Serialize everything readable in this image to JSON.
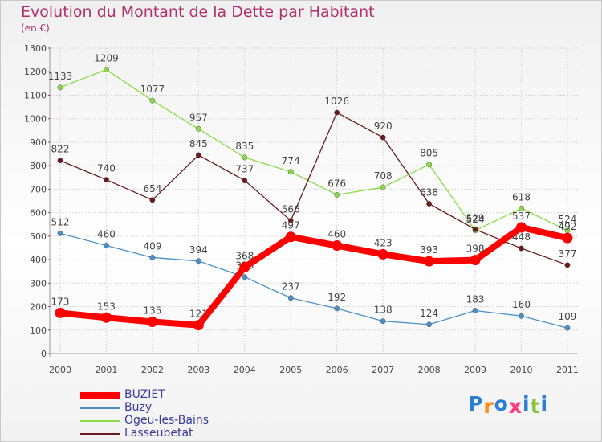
{
  "chart_data": {
    "type": "line",
    "title": "Evolution du Montant de la Dette par Habitant",
    "subtitle": "(en €)",
    "x": [
      "2000",
      "2001",
      "2002",
      "2003",
      "2004",
      "2005",
      "2006",
      "2007",
      "2008",
      "2009",
      "2010",
      "2011"
    ],
    "ylim": [
      0,
      1300
    ],
    "yticks": [
      0,
      100,
      200,
      300,
      400,
      500,
      600,
      700,
      800,
      900,
      1000,
      1100,
      1200,
      1300
    ],
    "grid": true,
    "legend_position": "bottom-left",
    "series": [
      {
        "name": "BUZIET",
        "color": "#ff0000",
        "values": [
          173,
          153,
          135,
          121,
          368,
          497,
          460,
          423,
          393,
          398,
          537,
          492
        ]
      },
      {
        "name": "Buzy",
        "color": "#4a90c8",
        "values": [
          512,
          460,
          409,
          394,
          326,
          237,
          192,
          138,
          124,
          183,
          160,
          109
        ]
      },
      {
        "name": "Ogeu-les-Bains",
        "color": "#88dd44",
        "values": [
          1133,
          1209,
          1077,
          957,
          835,
          774,
          676,
          708,
          805,
          524,
          618,
          524
        ]
      },
      {
        "name": "Lasseubetat",
        "color": "#6a1a1a",
        "values": [
          822,
          740,
          654,
          845,
          737,
          566,
          1026,
          920,
          638,
          529,
          448,
          377
        ]
      }
    ]
  },
  "logo": {
    "letters": [
      "P",
      "r",
      "o",
      "x",
      "i",
      "t",
      "i"
    ],
    "colors": [
      "#2a7fd4",
      "#ff8c1a",
      "#2a7fd4",
      "#ff3b7f",
      "#2a7fd4",
      "#88c43a",
      "#2a7fd4"
    ]
  }
}
